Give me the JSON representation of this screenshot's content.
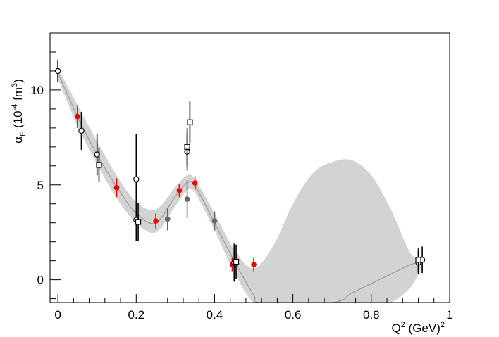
{
  "chart_data": {
    "type": "scatter",
    "title": "",
    "xlabel": {
      "main": "Q",
      "sup1": "2",
      "unit": " (GeV)",
      "sup2": "2"
    },
    "ylabel": {
      "symbol": "α",
      "sub": "E",
      "unit_open": " (10",
      "exp": "-4",
      "unit_mid": " fm",
      "exp2": "3",
      "unit_close": ")"
    },
    "xlim": [
      -0.02,
      1.0
    ],
    "ylim": [
      -1.2,
      13.0
    ],
    "x_ticks": [
      0,
      0.2,
      0.4,
      0.6,
      0.8,
      1
    ],
    "x_tick_labels": [
      "0",
      "0.2",
      "0.4",
      "0.6",
      "0.8",
      "1"
    ],
    "y_ticks": [
      0,
      5,
      10
    ],
    "y_tick_labels": [
      "0",
      "5",
      "10"
    ],
    "grid": false,
    "colors": {
      "band": "#d3d3d3",
      "fit_line": "#999999",
      "red": "#ee0000",
      "gray": "#666666",
      "black": "#000000"
    },
    "band": {
      "x": [
        0.0,
        0.05,
        0.1,
        0.15,
        0.2,
        0.25,
        0.3,
        0.33,
        0.35,
        0.4,
        0.45,
        0.5,
        0.55,
        0.6,
        0.65,
        0.7,
        0.75,
        0.8,
        0.85,
        0.9,
        0.93
      ],
      "upper": [
        11.2,
        9.2,
        7.3,
        5.5,
        4.1,
        3.7,
        4.9,
        5.5,
        5.3,
        3.5,
        1.6,
        0.6,
        1.8,
        4.0,
        5.6,
        6.2,
        6.3,
        5.5,
        3.7,
        1.4,
        1.1
      ],
      "lower": [
        10.6,
        8.1,
        6.1,
        4.3,
        3.0,
        2.5,
        3.9,
        4.7,
        4.6,
        2.6,
        0.4,
        -1.2,
        -1.2,
        -1.2,
        -1.2,
        -1.2,
        -1.2,
        -1.2,
        -1.2,
        -0.4,
        0.7
      ]
    },
    "fit": {
      "x": [
        0.0,
        0.05,
        0.1,
        0.15,
        0.2,
        0.25,
        0.3,
        0.33,
        0.35,
        0.4,
        0.45,
        0.5,
        0.52,
        0.7,
        0.75,
        0.8,
        0.85,
        0.9,
        0.93
      ],
      "y": [
        10.9,
        8.6,
        6.6,
        4.9,
        3.5,
        3.0,
        4.4,
        5.1,
        4.95,
        3.0,
        1.0,
        -0.8,
        -1.2,
        -1.2,
        -0.7,
        -0.2,
        0.3,
        0.8,
        0.95
      ]
    },
    "series": [
      {
        "marker": "circle-filled-red",
        "points": [
          {
            "x": 0.05,
            "y": 8.6,
            "err": 0.6
          },
          {
            "x": 0.15,
            "y": 4.85,
            "err": 0.5
          },
          {
            "x": 0.25,
            "y": 3.1,
            "err": 0.4
          },
          {
            "x": 0.31,
            "y": 4.7,
            "err": 0.35
          },
          {
            "x": 0.35,
            "y": 5.1,
            "err": 0.35
          },
          {
            "x": 0.445,
            "y": 0.8,
            "err": 0.35
          },
          {
            "x": 0.5,
            "y": 0.8,
            "err": 0.35
          }
        ]
      },
      {
        "marker": "circle-filled-gray",
        "points": [
          {
            "x": 0.28,
            "y": 3.2,
            "err": 0.6
          },
          {
            "x": 0.33,
            "y": 4.25,
            "err": 1.0
          },
          {
            "x": 0.4,
            "y": 3.1,
            "err": 0.5
          }
        ]
      },
      {
        "marker": "circle-open",
        "points": [
          {
            "x": 0.0,
            "y": 11.0,
            "err": 0.6
          },
          {
            "x": 0.06,
            "y": 7.85,
            "err": 1.0
          },
          {
            "x": 0.1,
            "y": 6.6,
            "err": 1.1
          },
          {
            "x": 0.2,
            "y": 5.3,
            "err": 2.4
          },
          {
            "x": 0.2,
            "y": 3.15,
            "err": 1.1
          },
          {
            "x": 0.33,
            "y": 6.75,
            "err": 1.0
          },
          {
            "x": 0.45,
            "y": 0.9,
            "err": 1.0
          },
          {
            "x": 0.92,
            "y": 0.9,
            "err": 0.6
          },
          {
            "x": 0.93,
            "y": 1.05,
            "err": 0.7
          }
        ]
      },
      {
        "marker": "square-open",
        "points": [
          {
            "x": 0.105,
            "y": 6.05,
            "err": 0.9
          },
          {
            "x": 0.205,
            "y": 3.05,
            "err": 1.0
          },
          {
            "x": 0.33,
            "y": 7.0,
            "err": 1.0
          },
          {
            "x": 0.337,
            "y": 8.3,
            "err": 1.1
          },
          {
            "x": 0.455,
            "y": 0.95,
            "err": 0.9
          },
          {
            "x": 0.92,
            "y": 1.05,
            "err": 0.6
          }
        ]
      }
    ]
  }
}
